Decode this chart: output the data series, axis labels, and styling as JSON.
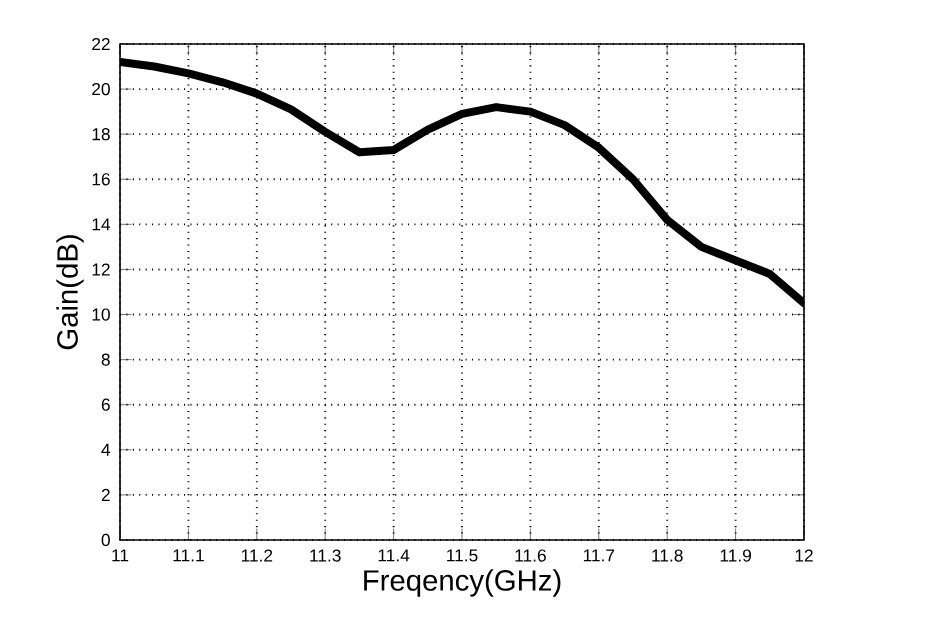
{
  "chart_data": {
    "type": "line",
    "xlabel": "Freqency(GHz)",
    "ylabel": "Gain(dB)",
    "x": [
      11,
      11.05,
      11.1,
      11.15,
      11.2,
      11.25,
      11.3,
      11.35,
      11.4,
      11.45,
      11.5,
      11.55,
      11.6,
      11.65,
      11.7,
      11.75,
      11.8,
      11.85,
      11.9,
      11.95,
      12
    ],
    "series": [
      {
        "color": "#000000",
        "values": [
          21.2,
          21.0,
          20.7,
          20.3,
          19.8,
          19.1,
          18.1,
          17.2,
          17.3,
          18.2,
          18.9,
          19.2,
          19.0,
          18.4,
          17.4,
          16.0,
          14.2,
          13.0,
          12.4,
          11.8,
          10.5
        ]
      }
    ],
    "xlim": [
      11,
      12
    ],
    "ylim": [
      0,
      22
    ],
    "xticks": [
      11,
      11.1,
      11.2,
      11.3,
      11.4,
      11.5,
      11.6,
      11.7,
      11.8,
      11.9,
      12
    ],
    "yticks": [
      0,
      2,
      4,
      6,
      8,
      10,
      12,
      14,
      16,
      18,
      20,
      22
    ],
    "grid": true,
    "marker": "none",
    "line_style": "solid"
  }
}
